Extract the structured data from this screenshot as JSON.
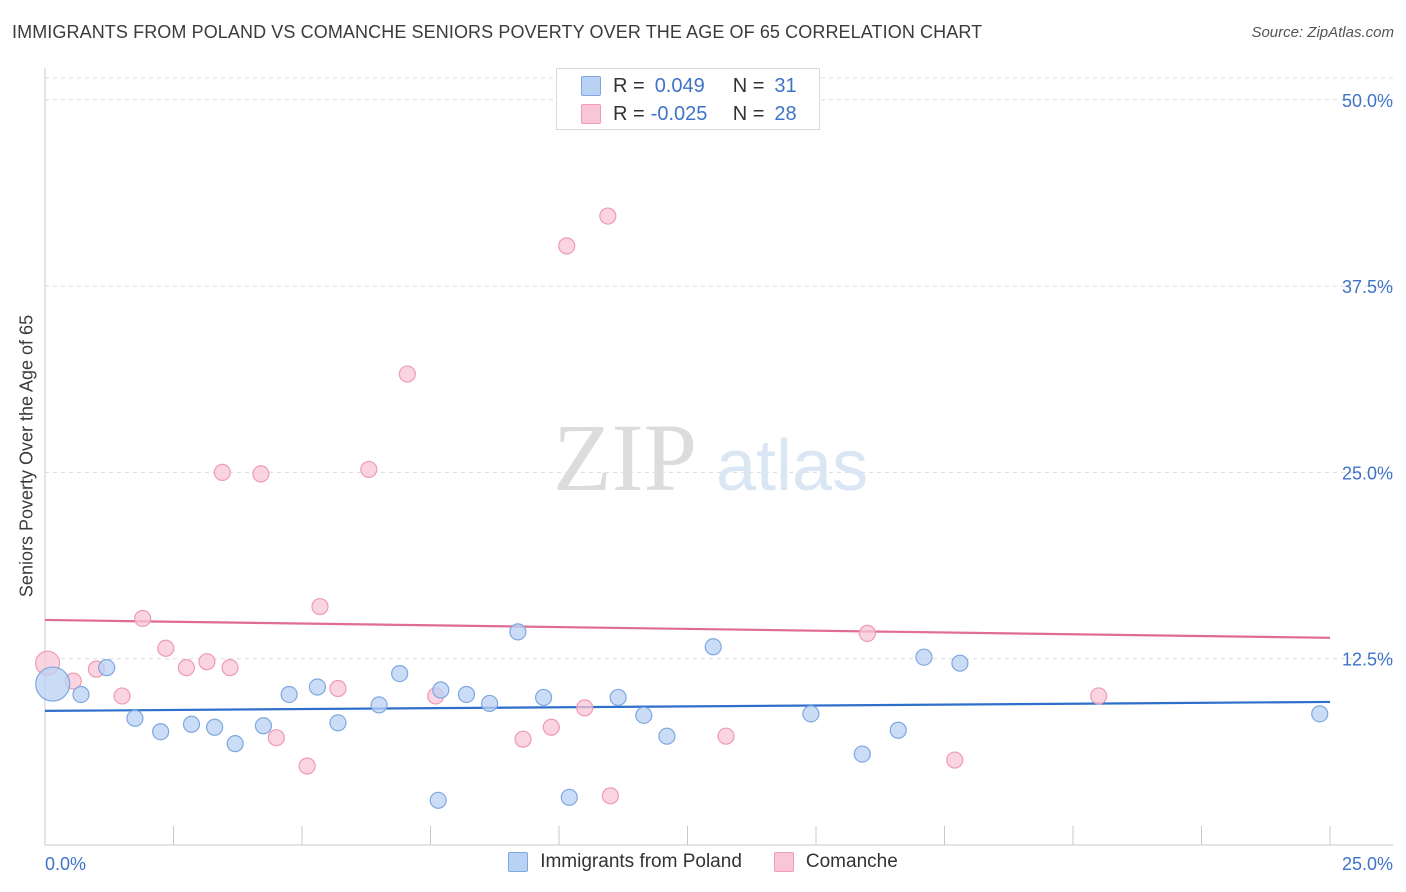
{
  "header": {
    "title": "IMMIGRANTS FROM POLAND VS COMANCHE SENIORS POVERTY OVER THE AGE OF 65 CORRELATION CHART",
    "source": "Source: ZipAtlas.com"
  },
  "watermark": {
    "zip": "ZIP",
    "atlas": "atlas"
  },
  "legend": {
    "rows": [
      {
        "r_label": "R =",
        "r_value": "0.049",
        "n_label": "N =",
        "n_value": "31"
      },
      {
        "r_label": "R =",
        "r_value": "-0.025",
        "n_label": "N =",
        "n_value": "28"
      }
    ]
  },
  "colors": {
    "blue_fill": "#b9d2f3",
    "blue_stroke": "#7ea7e0",
    "blue_line": "#2e6fcc",
    "pink_fill": "#f8c6d6",
    "pink_stroke": "#ee9bb6",
    "pink_line": "#e06b93",
    "axis_text": "#3f73c8",
    "grid": "#dcdcdc"
  },
  "chart_data": {
    "type": "scatter",
    "title": "IMMIGRANTS FROM POLAND VS COMANCHE SENIORS POVERTY OVER THE AGE OF 65 CORRELATION CHART",
    "xlabel": "",
    "ylabel": "Seniors Poverty Over the Age of 65",
    "xlim": [
      0,
      25
    ],
    "ylim": [
      0,
      52
    ],
    "x_tick_labels": [
      {
        "value": 0,
        "label": "0.0%"
      },
      {
        "value": 25,
        "label": "25.0%"
      }
    ],
    "y_tick_labels": [
      {
        "value": 12.5,
        "label": "12.5%"
      },
      {
        "value": 25,
        "label": "25.0%"
      },
      {
        "value": 37.5,
        "label": "37.5%"
      },
      {
        "value": 50,
        "label": "50.0%"
      }
    ],
    "grid": true,
    "series": [
      {
        "name": "Immigrants from Poland",
        "color": "#7ea7e0",
        "points": [
          [
            0.15,
            10.8
          ],
          [
            0.7,
            10.1
          ],
          [
            1.2,
            11.9
          ],
          [
            1.75,
            8.5
          ],
          [
            2.25,
            7.6
          ],
          [
            2.85,
            8.1
          ],
          [
            3.3,
            7.9
          ],
          [
            3.7,
            6.8
          ],
          [
            4.25,
            8.0
          ],
          [
            4.75,
            10.1
          ],
          [
            5.3,
            10.6
          ],
          [
            5.7,
            8.2
          ],
          [
            6.5,
            9.4
          ],
          [
            6.9,
            11.5
          ],
          [
            7.65,
            3.0
          ],
          [
            7.7,
            10.4
          ],
          [
            8.2,
            10.1
          ],
          [
            8.65,
            9.5
          ],
          [
            9.2,
            14.3
          ],
          [
            9.7,
            9.9
          ],
          [
            10.2,
            3.2
          ],
          [
            11.15,
            9.9
          ],
          [
            11.65,
            8.7
          ],
          [
            12.1,
            7.3
          ],
          [
            13.0,
            13.3
          ],
          [
            14.9,
            8.8
          ],
          [
            15.9,
            6.1
          ],
          [
            16.6,
            7.7
          ],
          [
            17.1,
            12.6
          ],
          [
            17.8,
            12.2
          ],
          [
            24.8,
            8.8
          ]
        ],
        "trend": [
          [
            0,
            9.0
          ],
          [
            25,
            9.6
          ]
        ]
      },
      {
        "name": "Comanche",
        "color": "#ee9bb6",
        "points": [
          [
            0.05,
            12.2
          ],
          [
            0.55,
            11.0
          ],
          [
            1.0,
            11.8
          ],
          [
            1.5,
            10.0
          ],
          [
            1.9,
            15.2
          ],
          [
            2.35,
            13.2
          ],
          [
            2.75,
            11.9
          ],
          [
            3.15,
            12.3
          ],
          [
            3.45,
            25.0
          ],
          [
            3.6,
            11.9
          ],
          [
            4.2,
            24.9
          ],
          [
            4.5,
            7.2
          ],
          [
            5.1,
            5.3
          ],
          [
            5.35,
            16.0
          ],
          [
            5.7,
            10.5
          ],
          [
            6.3,
            25.2
          ],
          [
            7.05,
            31.6
          ],
          [
            7.6,
            10.0
          ],
          [
            9.3,
            7.1
          ],
          [
            9.85,
            7.9
          ],
          [
            10.15,
            40.2
          ],
          [
            10.5,
            9.2
          ],
          [
            10.95,
            42.2
          ],
          [
            11.0,
            3.3
          ],
          [
            13.25,
            7.3
          ],
          [
            16.0,
            14.2
          ],
          [
            17.7,
            5.7
          ],
          [
            20.5,
            10.0
          ]
        ],
        "trend": [
          [
            0,
            15.1
          ],
          [
            25,
            13.9
          ]
        ]
      }
    ]
  },
  "bottom_legend": {
    "items": [
      {
        "label": "Immigrants from Poland"
      },
      {
        "label": "Comanche"
      }
    ]
  }
}
